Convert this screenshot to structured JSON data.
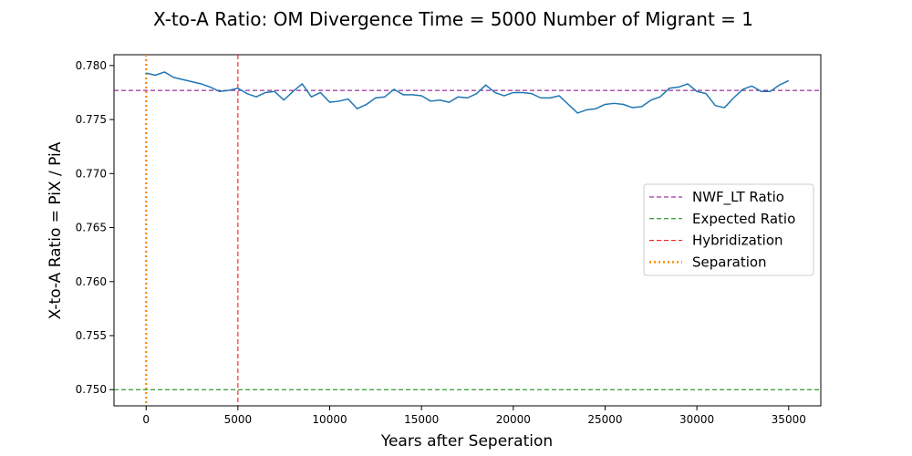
{
  "chart_data": {
    "type": "line",
    "title": "X-to-A Ratio: OM Divergence Time = 5000  Number of Migrant = 1",
    "xlabel": "Years after Seperation",
    "ylabel": "X-to-A Ratio = PiX / PiA",
    "xlim": [
      -1750,
      36750
    ],
    "ylim": [
      0.7485,
      0.781
    ],
    "xticks": [
      0,
      5000,
      10000,
      15000,
      20000,
      25000,
      30000,
      35000
    ],
    "xtick_labels": [
      "0",
      "5000",
      "10000",
      "15000",
      "20000",
      "25000",
      "30000",
      "35000"
    ],
    "yticks": [
      0.75,
      0.755,
      0.76,
      0.765,
      0.77,
      0.775,
      0.78
    ],
    "ytick_labels": [
      "0.750",
      "0.755",
      "0.760",
      "0.765",
      "0.770",
      "0.775",
      "0.780"
    ],
    "grid": false,
    "legend_position": "center-right",
    "series": [
      {
        "name": "",
        "color": "#1f77b4",
        "style": "solid",
        "x": [
          0,
          500,
          1000,
          1500,
          2000,
          2500,
          3000,
          3500,
          4000,
          4500,
          5000,
          5500,
          6000,
          6500,
          7000,
          7500,
          8000,
          8500,
          9000,
          9500,
          10000,
          10500,
          11000,
          11500,
          12000,
          12500,
          13000,
          13500,
          14000,
          14500,
          15000,
          15500,
          16000,
          16500,
          17000,
          17500,
          18000,
          18500,
          19000,
          19500,
          20000,
          20500,
          21000,
          21500,
          22000,
          22500,
          23000,
          23500,
          24000,
          24500,
          25000,
          25500,
          26000,
          26500,
          27000,
          27500,
          28000,
          28500,
          29000,
          29500,
          30000,
          30500,
          31000,
          31500,
          32000,
          32500,
          33000,
          33500,
          34000,
          34500,
          35000
        ],
        "y": [
          0.7793,
          0.7791,
          0.7794,
          0.7789,
          0.7787,
          0.7785,
          0.7783,
          0.778,
          0.7776,
          0.7777,
          0.7779,
          0.7774,
          0.7771,
          0.7775,
          0.7776,
          0.7768,
          0.7776,
          0.7783,
          0.7771,
          0.7775,
          0.7766,
          0.7767,
          0.7769,
          0.776,
          0.7764,
          0.777,
          0.7771,
          0.7778,
          0.7773,
          0.7773,
          0.7772,
          0.7767,
          0.7768,
          0.7766,
          0.7771,
          0.777,
          0.7774,
          0.7782,
          0.7775,
          0.7772,
          0.7775,
          0.7775,
          0.7774,
          0.777,
          0.777,
          0.7772,
          0.7764,
          0.7756,
          0.7759,
          0.776,
          0.7764,
          0.7765,
          0.7764,
          0.7761,
          0.7762,
          0.7768,
          0.7771,
          0.7779,
          0.778,
          0.7783,
          0.7776,
          0.7774,
          0.7763,
          0.7761,
          0.777,
          0.7778,
          0.7781,
          0.7776,
          0.7776,
          0.7782,
          0.7786
        ]
      }
    ],
    "reference_lines": [
      {
        "name": "NWF_LT Ratio",
        "orientation": "horizontal",
        "value": 0.7777,
        "color": "#800080",
        "style": "dashed"
      },
      {
        "name": "Expected Ratio",
        "orientation": "horizontal",
        "value": 0.75,
        "color": "#008000",
        "style": "dashed"
      },
      {
        "name": "Hybridization",
        "orientation": "vertical",
        "value": 5000,
        "color": "#ff0000",
        "style": "dashed"
      },
      {
        "name": "Separation",
        "orientation": "vertical",
        "value": 0,
        "color": "#ff8c00",
        "style": "dotted"
      }
    ]
  }
}
